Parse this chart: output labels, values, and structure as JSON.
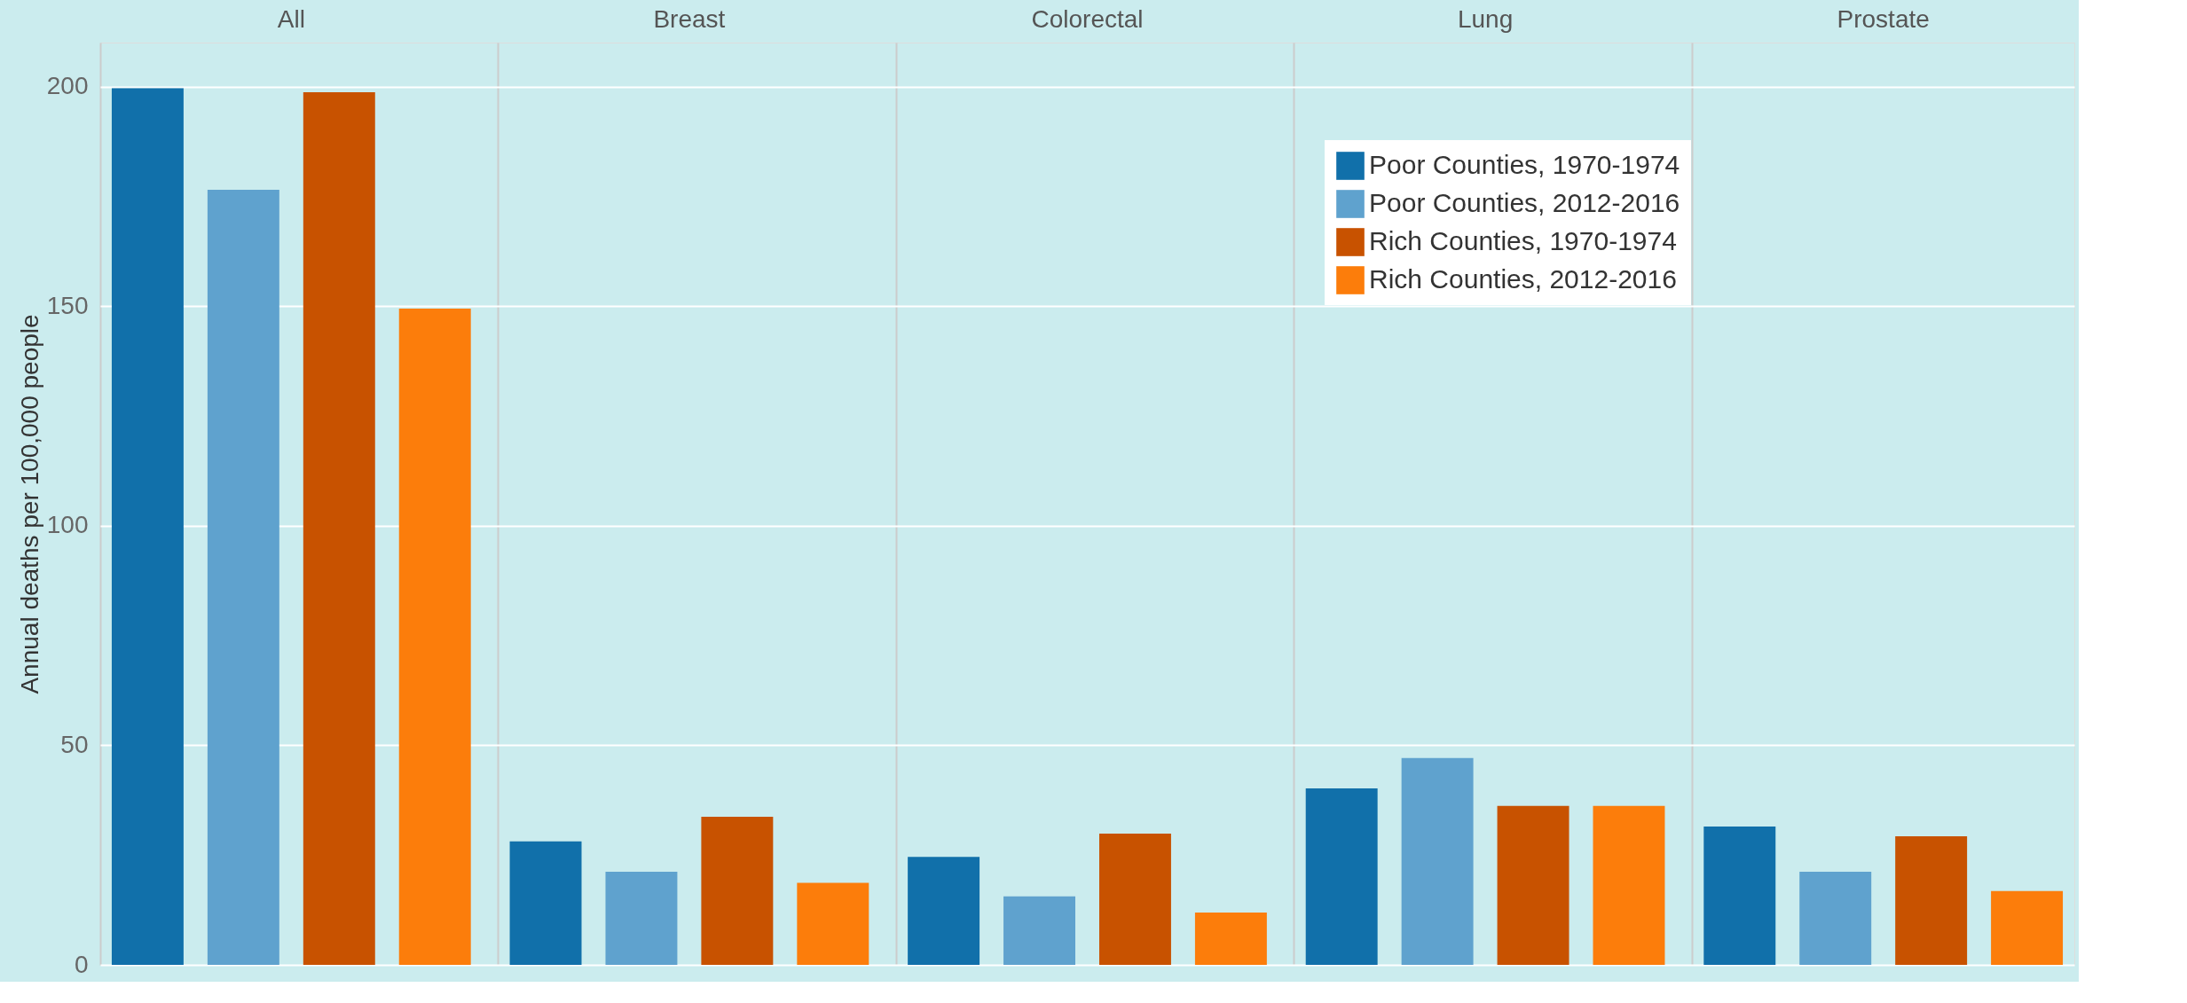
{
  "chart_data": {
    "type": "bar",
    "ylabel": "Annual deaths per 100,000 people",
    "categories": [
      "All",
      "Breast",
      "Colorectal",
      "Lung",
      "Prostate"
    ],
    "ylim": [
      0,
      210
    ],
    "yticks": [
      0,
      50,
      100,
      150,
      200
    ],
    "grid": "y",
    "legend": "top right",
    "series": [
      {
        "name": "Poor Counties, 1970-1974",
        "color": "#1170aa",
        "values": [
          199.6,
          28.1,
          24.6,
          40.2,
          31.5
        ]
      },
      {
        "name": "Poor Counties, 2012-2016",
        "color": "#5fa2ce",
        "values": [
          176.5,
          21.2,
          15.6,
          47.1,
          21.2
        ]
      },
      {
        "name": "Rich Counties, 1970-1974",
        "color": "#c85200",
        "values": [
          198.7,
          33.7,
          29.9,
          36.2,
          29.3
        ]
      },
      {
        "name": "Rich Counties, 2012-2016",
        "color": "#fc7d0b",
        "values": [
          149.4,
          18.7,
          11.9,
          36.2,
          16.8
        ]
      }
    ]
  }
}
